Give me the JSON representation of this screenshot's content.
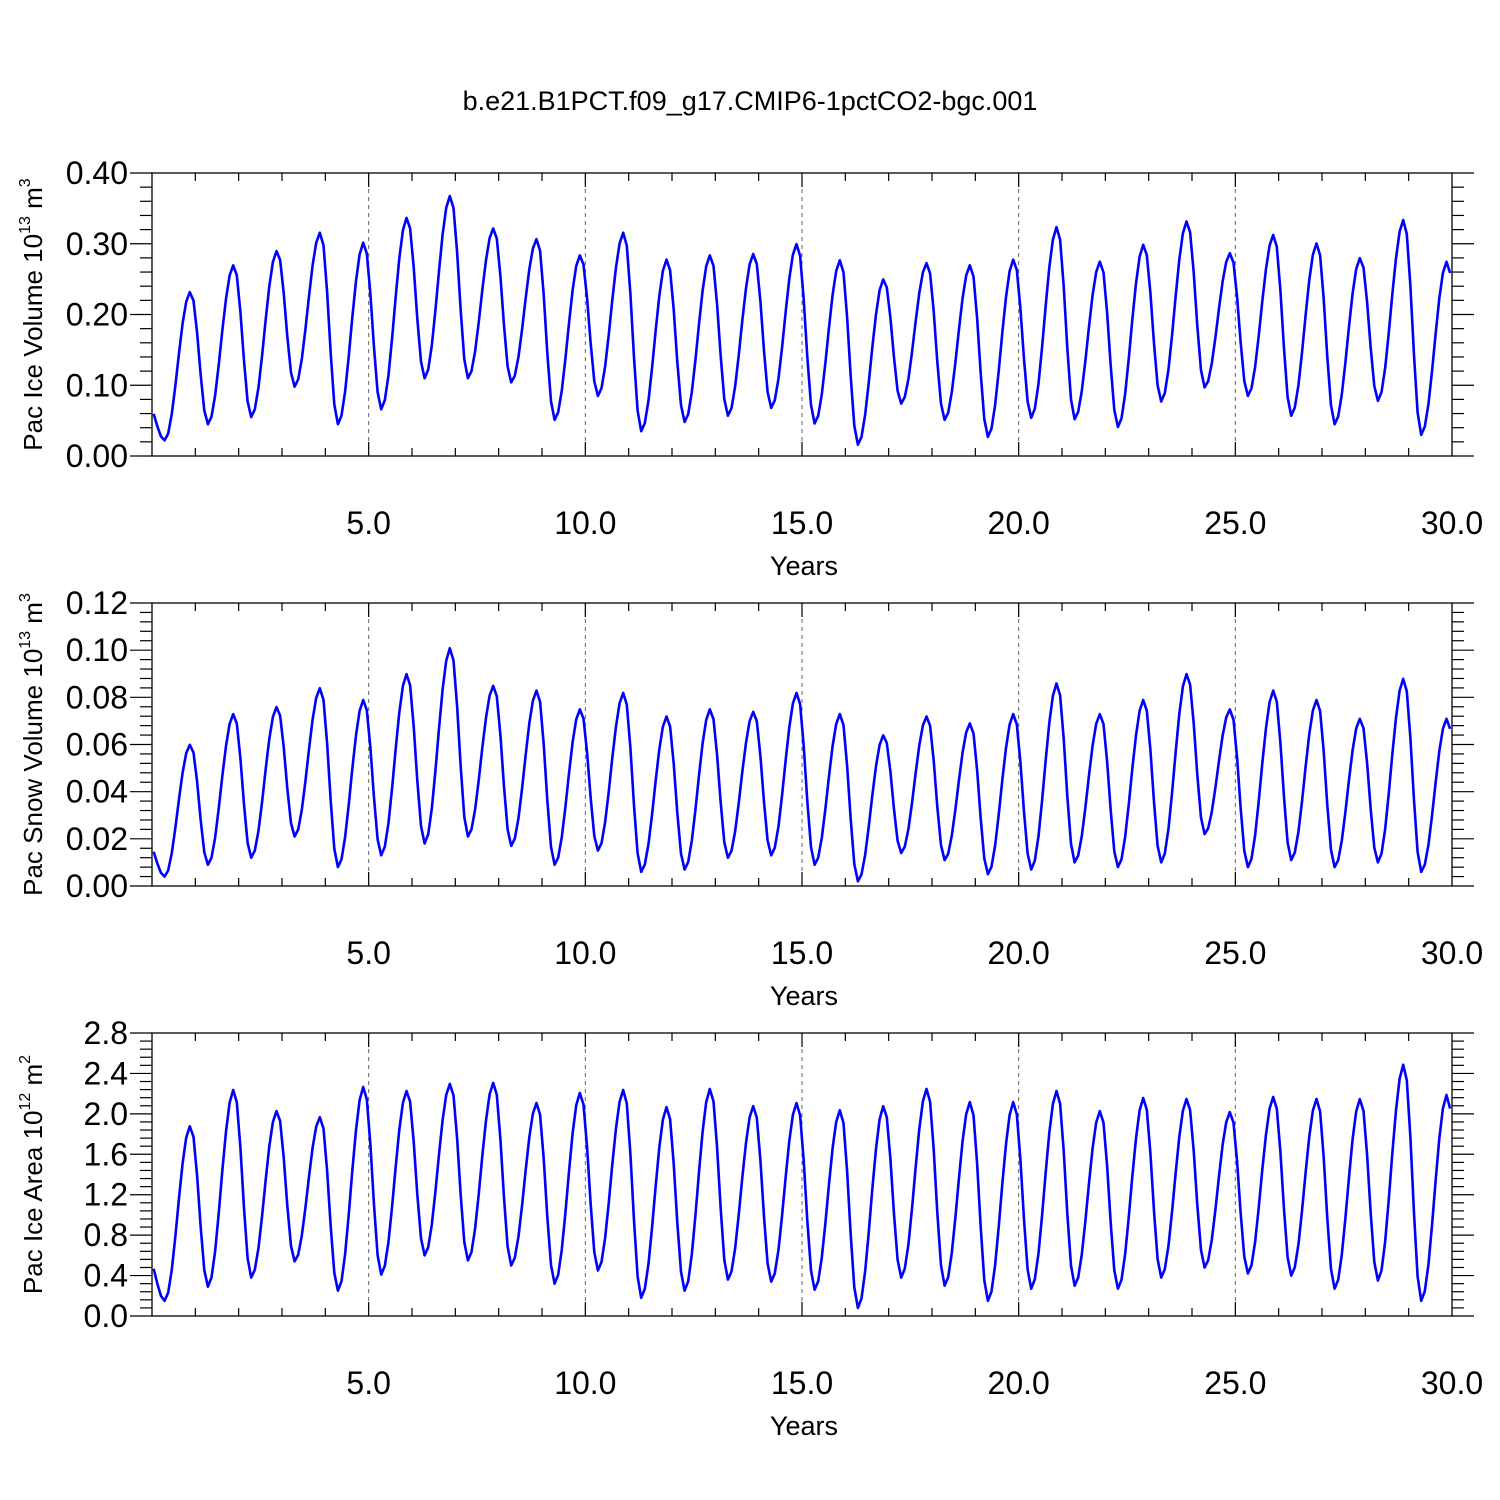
{
  "title": "b.e21.B1PCT.f09_g17.CMIP6-1pctCO2-bgc.001",
  "colors": {
    "series": "#0000ff",
    "axes": "#000000"
  },
  "chart_data": [
    {
      "type": "line",
      "xlabel": "Years",
      "ylabel_main": "Pac Ice Volume 10",
      "ylabel_exp": "13",
      "ylabel_unit": " m",
      "ylabel_unit_exp": "3",
      "xlim": [
        0.0,
        30.0
      ],
      "ylim": [
        0.0,
        0.4
      ],
      "xticks": [
        5,
        10,
        15,
        20,
        25,
        30
      ],
      "xtick_labels": [
        "5.0",
        "10.0",
        "15.0",
        "20.0",
        "25.0",
        "30.0"
      ],
      "yticks": [
        0.0,
        0.1,
        0.2,
        0.3,
        0.4
      ],
      "ytick_labels": [
        "0.00",
        "0.10",
        "0.20",
        "0.30",
        "0.40"
      ],
      "grid": "vertical dashed at major x ticks",
      "series": [
        {
          "annual_max": [
            0.232,
            0.27,
            0.29,
            0.316,
            0.302,
            0.337,
            0.368,
            0.322,
            0.307,
            0.284,
            0.316,
            0.278,
            0.284,
            0.286,
            0.3,
            0.277,
            0.25,
            0.273,
            0.27,
            0.278,
            0.324,
            0.275,
            0.299,
            0.332,
            0.287,
            0.313,
            0.301,
            0.28,
            0.334,
            0.275
          ],
          "annual_min": [
            0.022,
            0.045,
            0.055,
            0.098,
            0.045,
            0.066,
            0.11,
            0.11,
            0.104,
            0.051,
            0.085,
            0.035,
            0.048,
            0.057,
            0.068,
            0.046,
            0.016,
            0.074,
            0.051,
            0.027,
            0.054,
            0.052,
            0.041,
            0.077,
            0.097,
            0.085,
            0.057,
            0.045,
            0.078,
            0.03
          ]
        }
      ]
    },
    {
      "type": "line",
      "xlabel": "Years",
      "ylabel_main": "Pac Snow Volume 10",
      "ylabel_exp": "13",
      "ylabel_unit": " m",
      "ylabel_unit_exp": "3",
      "xlim": [
        0.0,
        30.0
      ],
      "ylim": [
        0.0,
        0.12
      ],
      "xticks": [
        5,
        10,
        15,
        20,
        25,
        30
      ],
      "xtick_labels": [
        "5.0",
        "10.0",
        "15.0",
        "20.0",
        "25.0",
        "30.0"
      ],
      "yticks": [
        0.0,
        0.02,
        0.04,
        0.06,
        0.08,
        0.1,
        0.12
      ],
      "ytick_labels": [
        "0.00",
        "0.02",
        "0.04",
        "0.06",
        "0.08",
        "0.10",
        "0.12"
      ],
      "grid": "vertical dashed at major x ticks",
      "series": [
        {
          "annual_max": [
            0.06,
            0.073,
            0.076,
            0.084,
            0.079,
            0.09,
            0.101,
            0.085,
            0.083,
            0.075,
            0.082,
            0.072,
            0.075,
            0.074,
            0.082,
            0.073,
            0.064,
            0.072,
            0.069,
            0.073,
            0.086,
            0.073,
            0.079,
            0.09,
            0.075,
            0.083,
            0.079,
            0.071,
            0.088,
            0.071
          ],
          "annual_min": [
            0.004,
            0.009,
            0.012,
            0.021,
            0.008,
            0.013,
            0.018,
            0.021,
            0.017,
            0.009,
            0.015,
            0.006,
            0.007,
            0.012,
            0.013,
            0.009,
            0.002,
            0.014,
            0.011,
            0.005,
            0.007,
            0.01,
            0.008,
            0.01,
            0.022,
            0.008,
            0.011,
            0.008,
            0.01,
            0.006
          ]
        }
      ]
    },
    {
      "type": "line",
      "xlabel": "Years",
      "ylabel_main": "Pac Ice Area 10",
      "ylabel_exp": "12",
      "ylabel_unit": " m",
      "ylabel_unit_exp": "2",
      "xlim": [
        0.0,
        30.0
      ],
      "ylim": [
        0.0,
        2.8
      ],
      "xticks": [
        5,
        10,
        15,
        20,
        25,
        30
      ],
      "xtick_labels": [
        "5.0",
        "10.0",
        "15.0",
        "20.0",
        "25.0",
        "30.0"
      ],
      "yticks": [
        0.0,
        0.4,
        0.8,
        1.2,
        1.6,
        2.0,
        2.4,
        2.8
      ],
      "ytick_labels": [
        "0.0",
        "0.4",
        "0.8",
        "1.2",
        "1.6",
        "2.0",
        "2.4",
        "2.8"
      ],
      "grid": "vertical dashed at major x ticks",
      "series": [
        {
          "annual_max": [
            1.88,
            2.24,
            2.03,
            1.97,
            2.27,
            2.23,
            2.3,
            2.31,
            2.11,
            2.21,
            2.24,
            2.07,
            2.25,
            2.08,
            2.11,
            2.04,
            2.08,
            2.25,
            2.12,
            2.12,
            2.23,
            2.03,
            2.16,
            2.15,
            2.02,
            2.17,
            2.15,
            2.15,
            2.49,
            2.19
          ],
          "annual_min": [
            0.15,
            0.29,
            0.38,
            0.54,
            0.25,
            0.41,
            0.6,
            0.55,
            0.5,
            0.32,
            0.45,
            0.18,
            0.25,
            0.36,
            0.34,
            0.26,
            0.08,
            0.38,
            0.3,
            0.15,
            0.27,
            0.3,
            0.27,
            0.38,
            0.48,
            0.42,
            0.4,
            0.27,
            0.35,
            0.15
          ]
        }
      ]
    }
  ]
}
